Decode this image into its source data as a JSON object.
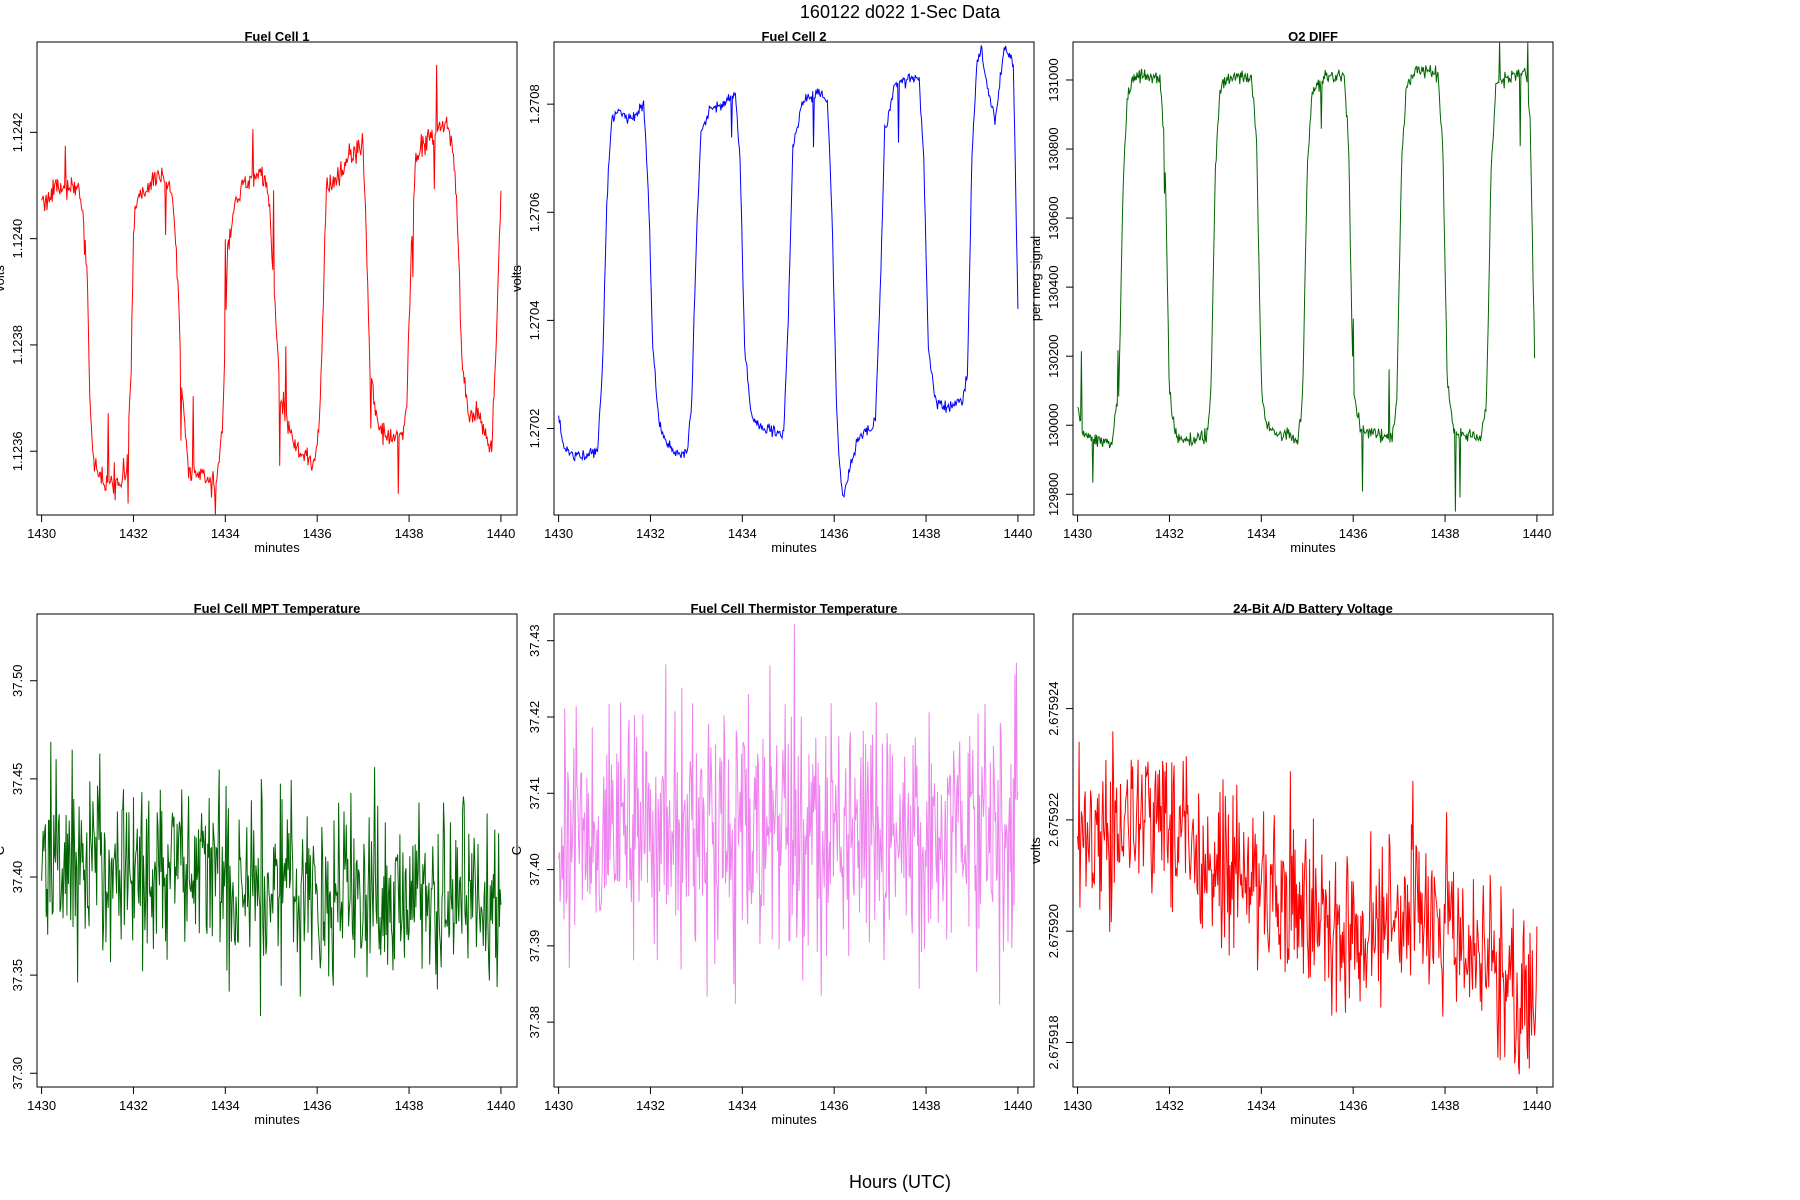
{
  "title": "160122   d022   1-Sec Data",
  "xlabel_global": "Hours (UTC)",
  "chart_data": [
    {
      "type": "line",
      "title": "Fuel Cell 1",
      "xlabel": "minutes",
      "ylabel": "volts",
      "color": "#ff0000",
      "xlim": [
        1429.9,
        1440.35
      ],
      "ylim": [
        1.12348,
        1.12437
      ],
      "xticks": [
        1430,
        1432,
        1434,
        1436,
        1438,
        1440
      ],
      "xtick_labels": [
        "1430",
        "1432",
        "1434",
        "1436",
        "1438",
        "1440"
      ],
      "yticks": [
        1.1236,
        1.1238,
        1.124,
        1.1242
      ],
      "ytick_labels": [
        "1.1236",
        "1.1238",
        "1.1240",
        "1.1242"
      ],
      "series": [
        {
          "name": "Fuel Cell 1",
          "x": [
            1430,
            1430.3,
            1430.8,
            1430.9,
            1431.0,
            1431.05,
            1431.15,
            1431.3,
            1431.5,
            1431.7,
            1431.85,
            1431.95,
            1432.0,
            1432.1,
            1432.3,
            1432.5,
            1432.7,
            1432.85,
            1432.95,
            1433.05,
            1433.2,
            1433.5,
            1433.7,
            1433.8,
            1433.95,
            1434.05,
            1434.2,
            1434.5,
            1434.8,
            1434.95,
            1435.05,
            1435.2,
            1435.5,
            1435.8,
            1435.95,
            1436.05,
            1436.2,
            1436.5,
            1436.8,
            1437.0,
            1437.05,
            1437.15,
            1437.3,
            1437.6,
            1437.85,
            1437.95,
            1438.05,
            1438.15,
            1438.3,
            1438.6,
            1438.8,
            1438.95,
            1439.05,
            1439.15,
            1439.3,
            1439.5,
            1439.7,
            1439.8,
            1439.9,
            1440.0
          ],
          "y": [
            1.12407,
            1.12409,
            1.1241,
            1.12405,
            1.1239,
            1.1237,
            1.12357,
            1.12354,
            1.12354,
            1.12355,
            1.12357,
            1.12375,
            1.12402,
            1.12408,
            1.12409,
            1.12412,
            1.12411,
            1.12408,
            1.12395,
            1.12372,
            1.12357,
            1.12355,
            1.12354,
            1.12354,
            1.12367,
            1.12398,
            1.12407,
            1.12411,
            1.12412,
            1.12408,
            1.12392,
            1.1237,
            1.12361,
            1.12358,
            1.12358,
            1.12365,
            1.12409,
            1.12413,
            1.12416,
            1.12417,
            1.12405,
            1.12375,
            1.12366,
            1.12362,
            1.12363,
            1.12368,
            1.12398,
            1.12415,
            1.12418,
            1.1242,
            1.12421,
            1.12418,
            1.12405,
            1.12378,
            1.12366,
            1.12367,
            1.12362,
            1.1236,
            1.1238,
            1.1241
          ]
        }
      ]
    },
    {
      "type": "line",
      "title": "Fuel Cell 2",
      "xlabel": "minutes",
      "ylabel": "volts",
      "color": "#0000ff",
      "xlim": [
        1429.9,
        1440.35
      ],
      "ylim": [
        1.27004,
        1.270915
      ],
      "xticks": [
        1430,
        1432,
        1434,
        1436,
        1438,
        1440
      ],
      "xtick_labels": [
        "1430",
        "1432",
        "1434",
        "1436",
        "1438",
        "1440"
      ],
      "yticks": [
        1.2702,
        1.2704,
        1.2706,
        1.2708
      ],
      "ytick_labels": [
        "1.2702",
        "1.2704",
        "1.2706",
        "1.2708"
      ],
      "series": [
        {
          "name": "Fuel Cell 2",
          "x": [
            1430,
            1430.1,
            1430.3,
            1430.6,
            1430.85,
            1430.95,
            1431.05,
            1431.15,
            1431.3,
            1431.6,
            1431.85,
            1431.95,
            1432.05,
            1432.2,
            1432.5,
            1432.8,
            1432.9,
            1433.0,
            1433.1,
            1433.3,
            1433.6,
            1433.85,
            1433.95,
            1434.05,
            1434.2,
            1434.5,
            1434.8,
            1434.9,
            1435.0,
            1435.1,
            1435.3,
            1435.6,
            1435.85,
            1435.95,
            1436.05,
            1436.1,
            1436.2,
            1436.5,
            1436.8,
            1436.9,
            1437.0,
            1437.1,
            1437.3,
            1437.6,
            1437.85,
            1437.95,
            1438.05,
            1438.2,
            1438.5,
            1438.8,
            1438.9,
            1439.0,
            1439.1,
            1439.2,
            1439.3,
            1439.5,
            1439.7,
            1439.9,
            1440.0
          ],
          "y": [
            1.27022,
            1.27017,
            1.27015,
            1.27015,
            1.27016,
            1.2703,
            1.27062,
            1.27077,
            1.27079,
            1.27077,
            1.2708,
            1.27065,
            1.27035,
            1.2702,
            1.27016,
            1.27015,
            1.27025,
            1.27055,
            1.27075,
            1.27079,
            1.2708,
            1.27082,
            1.2707,
            1.27035,
            1.27022,
            1.2702,
            1.27019,
            1.27019,
            1.2704,
            1.27072,
            1.2708,
            1.27082,
            1.27081,
            1.2706,
            1.27025,
            1.27015,
            1.27007,
            1.27018,
            1.2702,
            1.27022,
            1.27045,
            1.27075,
            1.27083,
            1.27085,
            1.27085,
            1.2707,
            1.27035,
            1.27025,
            1.27024,
            1.27025,
            1.2703,
            1.2707,
            1.27087,
            1.2709,
            1.27085,
            1.27077,
            1.2709,
            1.27088,
            1.27042
          ]
        }
      ]
    },
    {
      "type": "line",
      "title": "O2 DIFF",
      "xlabel": "minutes",
      "ylabel": "per meg signal",
      "color": "#006400",
      "xlim": [
        1429.9,
        1440.35
      ],
      "ylim": [
        129740,
        131110
      ],
      "xticks": [
        1430,
        1432,
        1434,
        1436,
        1438,
        1440
      ],
      "xtick_labels": [
        "1430",
        "1432",
        "1434",
        "1436",
        "1438",
        "1440"
      ],
      "yticks": [
        129800,
        130000,
        130200,
        130400,
        130600,
        130800,
        131000
      ],
      "ytick_labels": [
        "129800",
        "130000",
        "130200",
        "130400",
        "130600",
        "130800",
        "131000"
      ],
      "series": [
        {
          "name": "O2 DIFF",
          "x": [
            1430,
            1430.1,
            1430.3,
            1430.5,
            1430.75,
            1430.9,
            1431.0,
            1431.1,
            1431.2,
            1431.5,
            1431.8,
            1431.9,
            1432.0,
            1432.1,
            1432.2,
            1432.5,
            1432.8,
            1432.9,
            1433.0,
            1433.1,
            1433.3,
            1433.5,
            1433.8,
            1433.9,
            1434.0,
            1434.1,
            1434.3,
            1434.6,
            1434.8,
            1434.9,
            1435.0,
            1435.1,
            1435.3,
            1435.6,
            1435.8,
            1435.9,
            1436.0,
            1436.15,
            1436.3,
            1436.6,
            1436.85,
            1436.95,
            1437.05,
            1437.15,
            1437.3,
            1437.6,
            1437.85,
            1437.95,
            1438.05,
            1438.2,
            1438.5,
            1438.75,
            1438.9,
            1439.0,
            1439.1,
            1439.3,
            1439.6,
            1439.75,
            1439.85,
            1439.95
          ],
          "y": [
            130050,
            129980,
            129960,
            129960,
            129950,
            130100,
            130750,
            130960,
            131010,
            131010,
            131000,
            130800,
            130100,
            129990,
            129960,
            129950,
            129960,
            130080,
            130750,
            130970,
            131010,
            131020,
            131000,
            130800,
            130110,
            130000,
            129980,
            129970,
            129960,
            130080,
            130740,
            130960,
            131000,
            131010,
            131010,
            130820,
            130100,
            129990,
            129980,
            129970,
            129960,
            130080,
            130740,
            130980,
            131020,
            131030,
            131010,
            130820,
            130110,
            129980,
            129970,
            129960,
            130050,
            130740,
            130980,
            131000,
            131020,
            131030,
            130900,
            130200
          ]
        }
      ]
    },
    {
      "type": "line",
      "title": "Fuel Cell MPT Temperature",
      "xlabel": "minutes",
      "ylabel": "C",
      "color": "#006400",
      "xlim": [
        1429.9,
        1440.35
      ],
      "ylim": [
        37.293,
        37.534
      ],
      "xticks": [
        1430,
        1432,
        1434,
        1436,
        1438,
        1440
      ],
      "xtick_labels": [
        "1430",
        "1432",
        "1434",
        "1436",
        "1438",
        "1440"
      ],
      "yticks": [
        37.3,
        37.35,
        37.4,
        37.45,
        37.5
      ],
      "ytick_labels": [
        "37.30",
        "37.35",
        "37.40",
        "37.45",
        "37.50"
      ],
      "series": [
        {
          "name": "MPT Temperature",
          "x": [
            1430,
            1432,
            1434,
            1436,
            1438,
            1440
          ],
          "y": [
            37.41,
            37.405,
            37.4,
            37.395,
            37.39,
            37.39
          ]
        }
      ]
    },
    {
      "type": "line",
      "title": "Fuel Cell Thermistor Temperature",
      "xlabel": "minutes",
      "ylabel": "C",
      "color": "#ee82ee",
      "xlim": [
        1429.9,
        1440.35
      ],
      "ylim": [
        37.3715,
        37.4335
      ],
      "xticks": [
        1430,
        1432,
        1434,
        1436,
        1438,
        1440
      ],
      "xtick_labels": [
        "1430",
        "1432",
        "1434",
        "1436",
        "1438",
        "1440"
      ],
      "yticks": [
        37.38,
        37.39,
        37.4,
        37.41,
        37.42,
        37.43
      ],
      "ytick_labels": [
        "37.38",
        "37.39",
        "37.40",
        "37.41",
        "37.42",
        "37.43"
      ],
      "series": [
        {
          "name": "Thermistor Temperature",
          "x": [
            1430,
            1432,
            1434,
            1436,
            1438,
            1440
          ],
          "y": [
            37.405,
            37.405,
            37.405,
            37.405,
            37.405,
            37.408
          ]
        }
      ]
    },
    {
      "type": "line",
      "title": "24-Bit A/D Battery Voltage",
      "xlabel": "minutes",
      "ylabel": "volts",
      "color": "#ff0000",
      "xlim": [
        1429.9,
        1440.35
      ],
      "ylim": [
        2.6759172,
        2.6759257
      ],
      "xticks": [
        1430,
        1432,
        1434,
        1436,
        1438,
        1440
      ],
      "xtick_labels": [
        "1430",
        "1432",
        "1434",
        "1436",
        "1438",
        "1440"
      ],
      "yticks": [
        2.675918,
        2.67592,
        2.675922,
        2.675924
      ],
      "ytick_labels": [
        "2.675918",
        "2.675920",
        "2.675922",
        "2.675924"
      ],
      "series": [
        {
          "name": "Battery Voltage",
          "x": [
            1430,
            1431,
            1432,
            1433,
            1434,
            1435,
            1436,
            1437,
            1438,
            1439,
            1440
          ],
          "y": [
            2.6759216,
            2.6759219,
            2.6759221,
            2.6759213,
            2.6759207,
            2.6759203,
            2.6759197,
            2.6759205,
            2.6759202,
            2.6759193,
            2.6759189
          ]
        }
      ]
    }
  ]
}
